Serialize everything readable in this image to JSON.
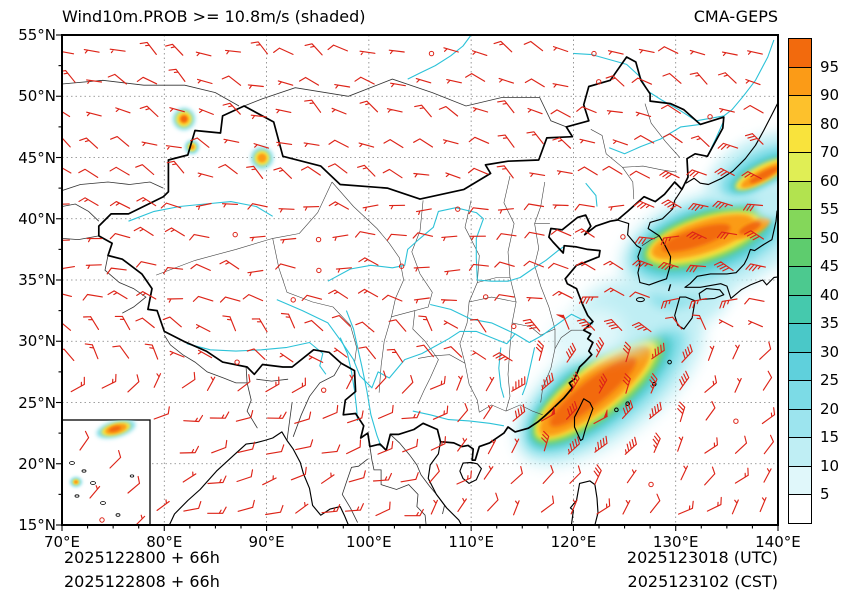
{
  "header": {
    "title": "Wind10m.PROB >= 10.8m/s (shaded)",
    "model_label": "CMA-GEPS"
  },
  "footer": {
    "init_utc": "2025122800 + 66h",
    "init_cst": "2025122808 + 66h",
    "valid_utc": "2025123018 (UTC)",
    "valid_cst": "2025123102 (CST)"
  },
  "axes": {
    "x_tick_labels": [
      "70°E",
      "80°E",
      "90°E",
      "100°E",
      "110°E",
      "120°E",
      "130°E",
      "140°E"
    ],
    "y_tick_labels": [
      "55°N",
      "50°N",
      "45°N",
      "40°N",
      "35°N",
      "30°N",
      "25°N",
      "20°N",
      "15°N"
    ],
    "lon_range": [
      70,
      140
    ],
    "lat_range": [
      15,
      55
    ]
  },
  "colorbar": {
    "tick_labels": [
      "95",
      "90",
      "80",
      "70",
      "60",
      "55",
      "50",
      "45",
      "40",
      "35",
      "30",
      "25",
      "20",
      "15",
      "10",
      "5"
    ],
    "cell_colors_top_to_bottom": [
      "#f26a0d",
      "#fb9b17",
      "#fdc12c",
      "#f9e33c",
      "#e0ee55",
      "#b2e34f",
      "#84d75a",
      "#5ecc6e",
      "#4cc98f",
      "#45c9ad",
      "#4ac8c8",
      "#5fd0dc",
      "#7cdbe6",
      "#9ce4ee",
      "#bfeef4",
      "#e0f7fa",
      "#ffffff"
    ]
  },
  "map": {
    "coastline_color": "#000000",
    "river_color": "#2cc2d8",
    "barb_color": "#dd2418",
    "grid_color": "#808080",
    "province_color": "#444444"
  },
  "chart_data": {
    "type": "heatmap",
    "title": "Wind10m.PROB >= 10.8m/s (shaded)",
    "model": "CMA-GEPS",
    "x_axis": {
      "label": "longitude",
      "range_deg_east": [
        70,
        140
      ],
      "tick_step_deg": 10
    },
    "y_axis": {
      "label": "latitude",
      "range_deg_north": [
        15,
        55
      ],
      "tick_step_deg": 5
    },
    "probability_levels_percent": [
      5,
      10,
      15,
      20,
      25,
      30,
      35,
      40,
      45,
      50,
      55,
      60,
      70,
      80,
      90,
      95
    ],
    "shaded_features": [
      {
        "region": "Taiwan Strait / East China Sea off southeast China coast",
        "approx_bounds_lonlat": [
          [
            115,
            20
          ],
          [
            131,
            31
          ]
        ],
        "max_probability_percent": 95
      },
      {
        "region": "Sea of Japan / northern Japan",
        "approx_bounds_lonlat": [
          [
            124,
            31
          ],
          [
            140,
            42
          ]
        ],
        "max_probability_percent": 95
      },
      {
        "region": "Far northeast corner near 138E 43N",
        "approx_bounds_lonlat": [
          [
            133,
            41
          ],
          [
            140,
            47
          ]
        ],
        "max_probability_percent": 90
      },
      {
        "region": "Small spots northern Xinjiang",
        "approx_bounds_lonlat": [
          [
            81,
            44
          ],
          [
            90,
            49
          ]
        ],
        "max_probability_percent": 90
      },
      {
        "region": "Yellow Sea low-probability halo",
        "approx_bounds_lonlat": [
          [
            118,
            29
          ],
          [
            128,
            36
          ]
        ],
        "max_probability_percent": 20
      },
      {
        "region": "South China Sea inset blob",
        "max_probability_percent": 90
      }
    ],
    "overlay": {
      "symbol": "wind barbs",
      "color": "red",
      "calm_symbol": "small circle"
    },
    "init_times": [
      "2025122800 + 66h",
      "2025122808 + 66h"
    ],
    "valid_times": [
      "2025123018 (UTC)",
      "2025123102 (CST)"
    ]
  }
}
